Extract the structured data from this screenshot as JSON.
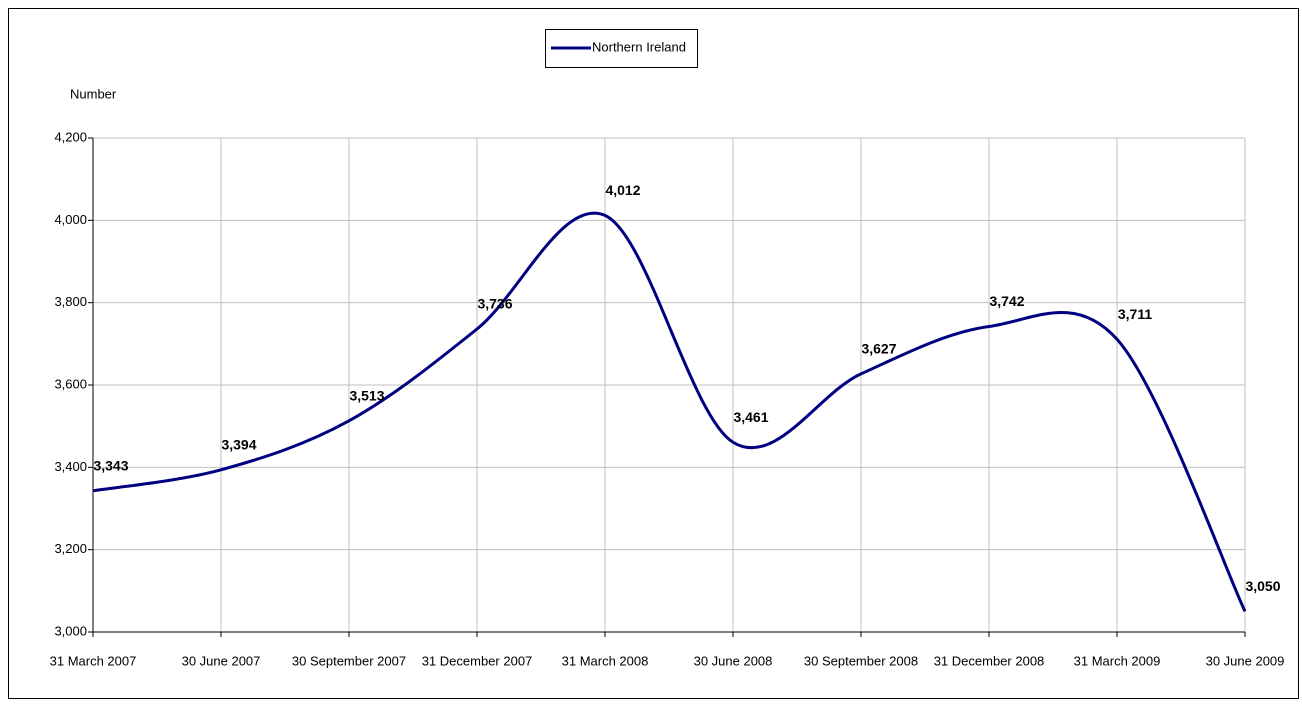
{
  "chart_data": {
    "type": "line",
    "y_label": "Number",
    "categories": [
      "31 March 2007",
      "30 June 2007",
      "30 September 2007",
      "31 December 2007",
      "31 March 2008",
      "30 June 2008",
      "30 September 2008",
      "31 December 2008",
      "31 March 2009",
      "30 June 2009"
    ],
    "series": [
      {
        "name": "Northern Ireland",
        "color": "#000080",
        "values": [
          3343,
          3394,
          3513,
          3736,
          4012,
          3461,
          3627,
          3742,
          3711,
          3050
        ],
        "value_labels": [
          "3,343",
          "3,394",
          "3,513",
          "3,736",
          "4,012",
          "3,461",
          "3,627",
          "3,742",
          "3,711",
          "3,050"
        ]
      }
    ],
    "ylim": [
      3000,
      4200
    ],
    "yticks": [
      {
        "value": 3000,
        "label": "3,000"
      },
      {
        "value": 3200,
        "label": "3,200"
      },
      {
        "value": 3400,
        "label": "3,400"
      },
      {
        "value": 3600,
        "label": "3,600"
      },
      {
        "value": 3800,
        "label": "3,800"
      },
      {
        "value": 4000,
        "label": "4,000"
      },
      {
        "value": 4200,
        "label": "4,200"
      }
    ],
    "grid": true,
    "smooth": true,
    "legend": "top"
  }
}
